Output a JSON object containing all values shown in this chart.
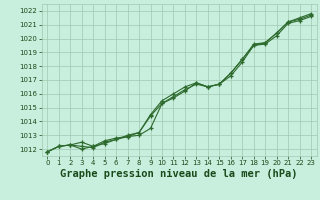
{
  "title": "Graphe pression niveau de la mer (hPa)",
  "x": [
    0,
    1,
    2,
    3,
    4,
    5,
    6,
    7,
    8,
    9,
    10,
    11,
    12,
    13,
    14,
    15,
    16,
    17,
    18,
    19,
    20,
    21,
    22,
    23
  ],
  "line1": [
    1011.8,
    1012.2,
    1012.3,
    1012.2,
    1012.1,
    1012.5,
    1012.7,
    1012.9,
    1013.0,
    1013.5,
    1015.3,
    1015.8,
    1016.3,
    1016.7,
    1016.5,
    1016.7,
    1017.3,
    1018.3,
    1019.5,
    1019.6,
    1020.2,
    1021.1,
    1021.3,
    1021.6
  ],
  "line2": [
    1011.8,
    1012.2,
    1012.3,
    1012.5,
    1012.2,
    1012.6,
    1012.8,
    1012.9,
    1013.2,
    1014.5,
    1015.5,
    1016.0,
    1016.5,
    1016.8,
    1016.5,
    1016.7,
    1017.5,
    1018.5,
    1019.5,
    1019.7,
    1020.4,
    1021.2,
    1021.4,
    1021.7
  ],
  "line3": [
    1011.8,
    1012.2,
    1012.3,
    1012.0,
    1012.2,
    1012.4,
    1012.7,
    1013.0,
    1013.2,
    1014.4,
    1015.3,
    1015.7,
    1016.2,
    1016.8,
    1016.5,
    1016.7,
    1017.5,
    1018.5,
    1019.6,
    1019.7,
    1020.4,
    1021.2,
    1021.5,
    1021.8
  ],
  "ylim": [
    1011.5,
    1022.5
  ],
  "yticks": [
    1012,
    1013,
    1014,
    1015,
    1016,
    1017,
    1018,
    1019,
    1020,
    1021,
    1022
  ],
  "xlim": [
    -0.5,
    23.5
  ],
  "xticks": [
    0,
    1,
    2,
    3,
    4,
    5,
    6,
    7,
    8,
    9,
    10,
    11,
    12,
    13,
    14,
    15,
    16,
    17,
    18,
    19,
    20,
    21,
    22,
    23
  ],
  "line_color": "#2d6a2d",
  "bg_color": "#c8eedd",
  "grid_color": "#a0c8b0",
  "title_color": "#1a4a1a",
  "tick_color": "#1a4a1a",
  "label_fontsize": 5.0,
  "title_fontsize": 7.5
}
